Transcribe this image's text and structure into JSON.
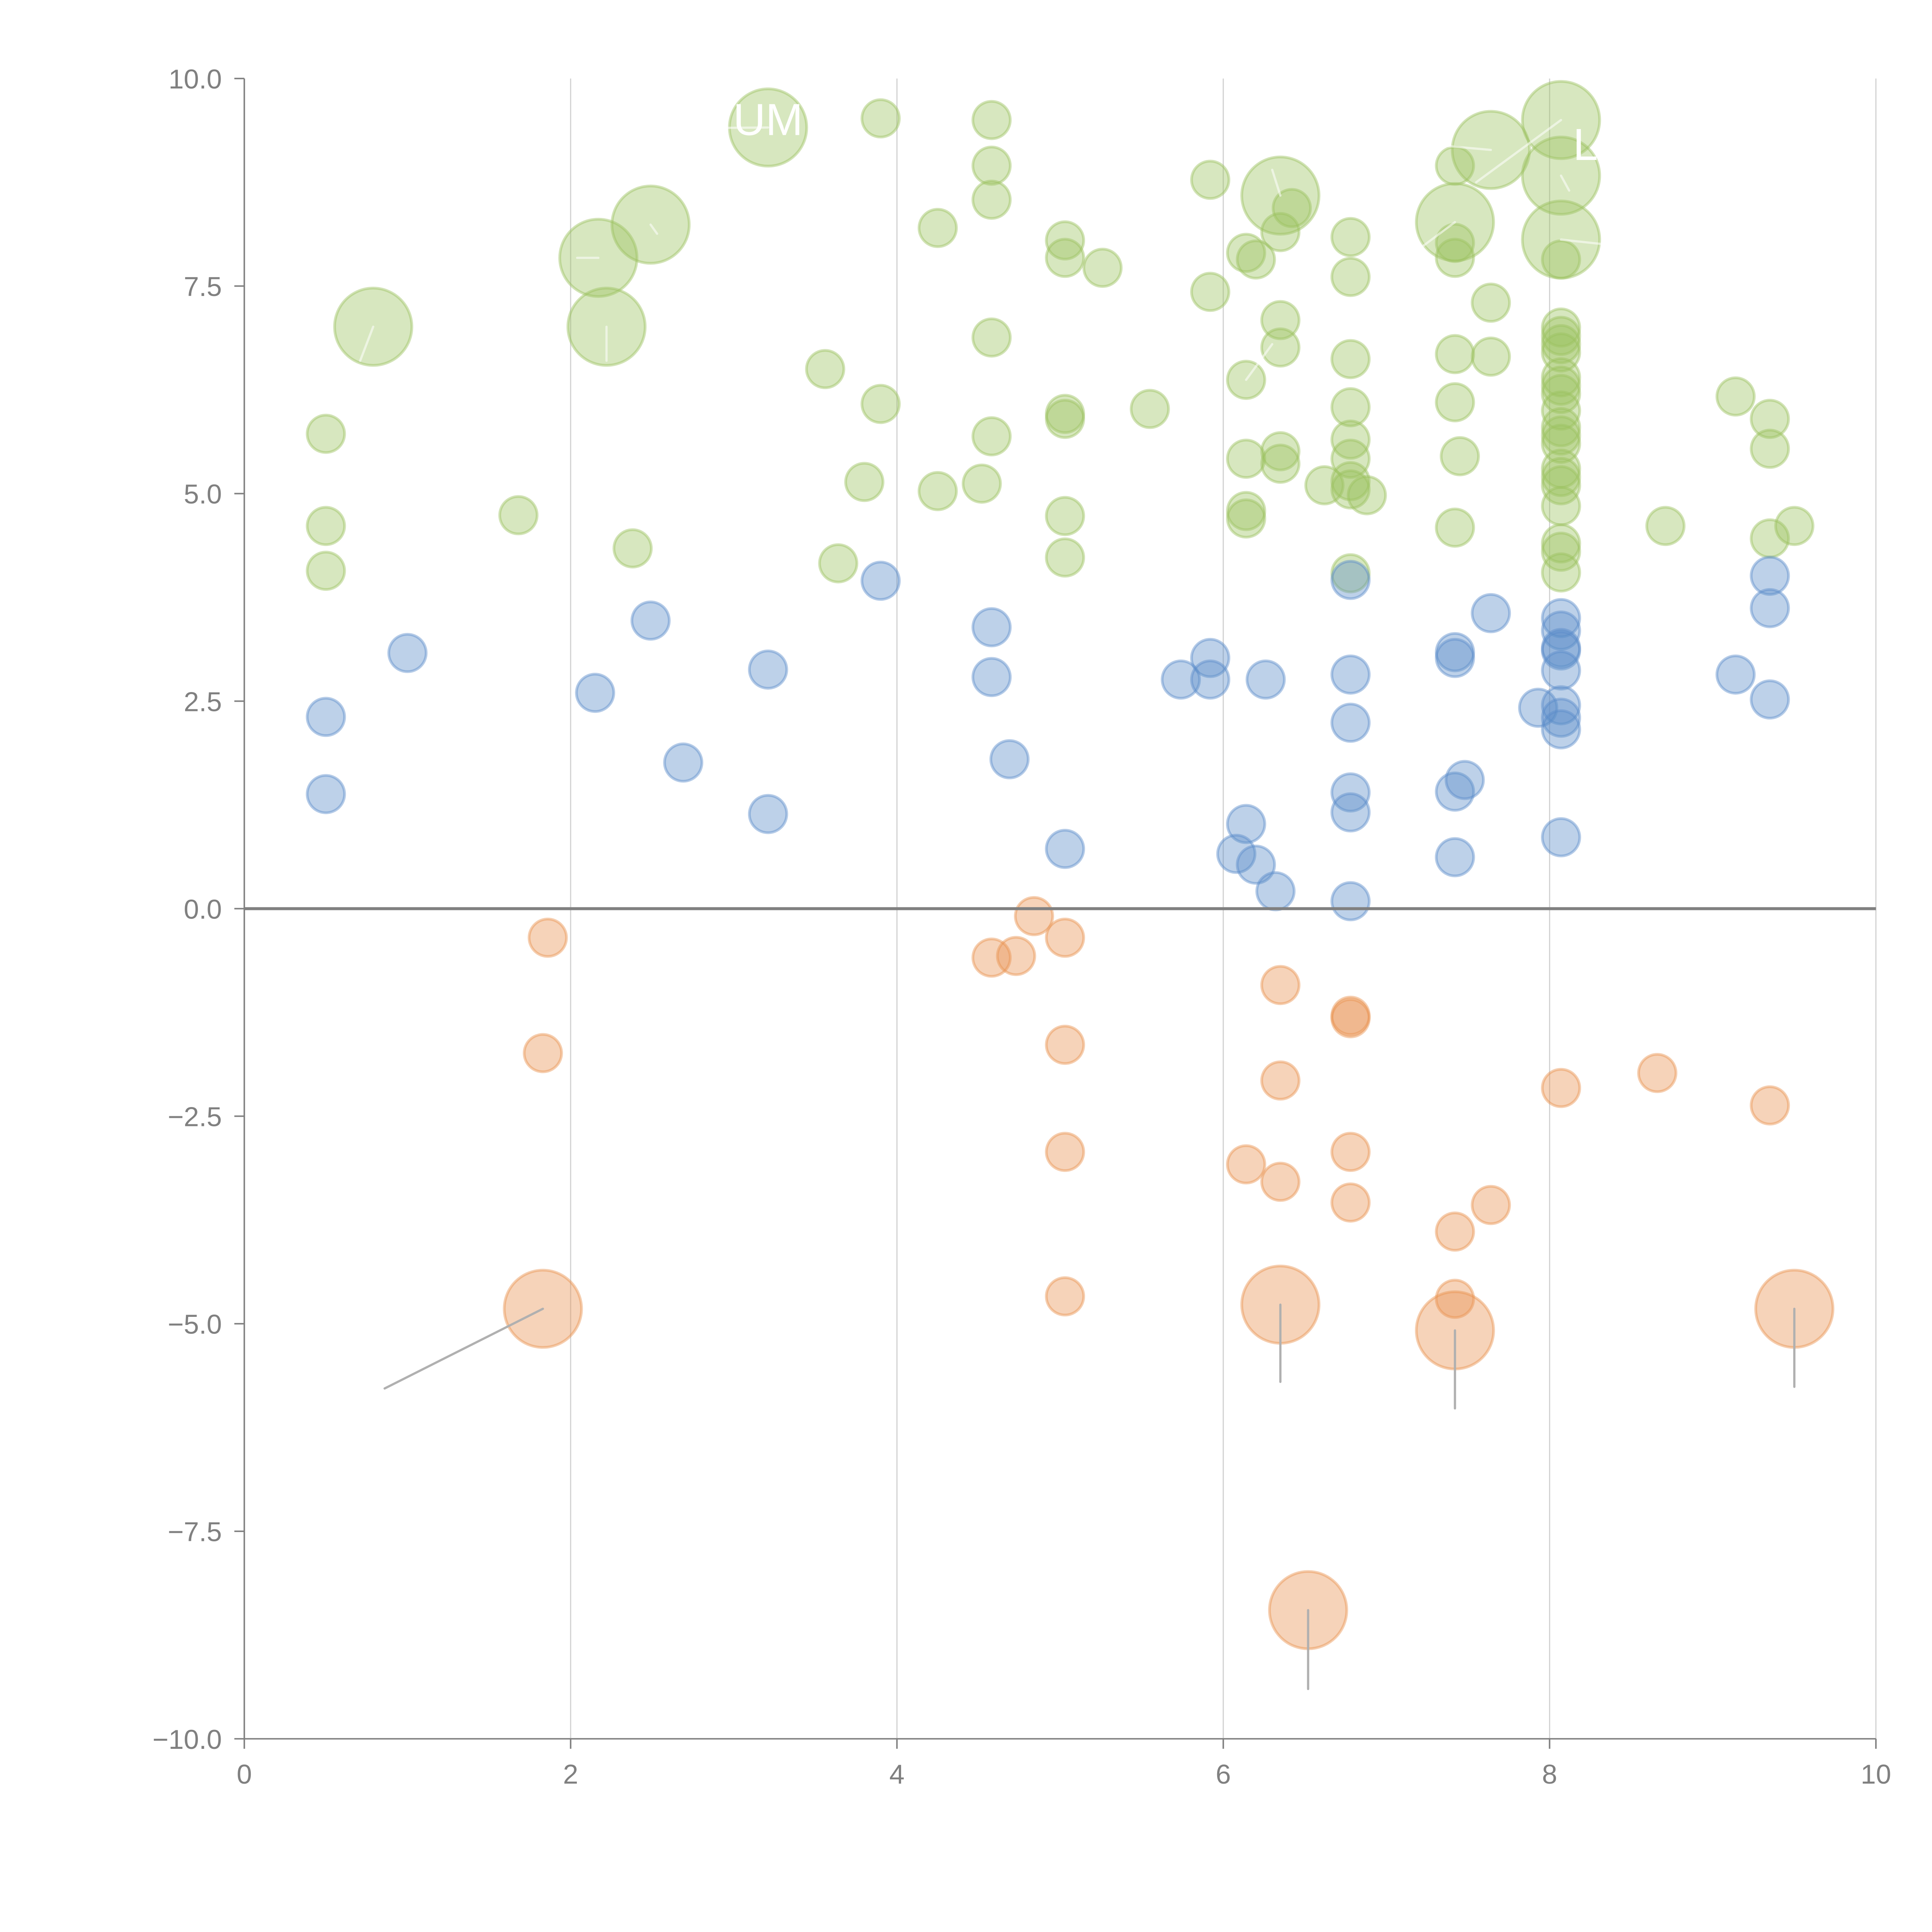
{
  "chart_data": {
    "type": "scatter",
    "subtype": "bubble",
    "title": "",
    "xlabel": "",
    "ylabel": "",
    "xlim": [
      0,
      10
    ],
    "ylim": [
      -10,
      10
    ],
    "x_ticks": [
      "0",
      "2",
      "4",
      "6",
      "8",
      "10"
    ],
    "x_tick_values": [
      0,
      2,
      4,
      6,
      8,
      10
    ],
    "y_ticks": [
      "10.0",
      "7.5",
      "5.0",
      "2.5",
      "0.0",
      "−2.5",
      "−5.0",
      "−7.5",
      "−10.0"
    ],
    "y_tick_values": [
      10,
      7.5,
      5,
      2.5,
      0,
      -2.5,
      -5,
      -7.5,
      -10
    ],
    "vertical_grid": true,
    "zero_line": true,
    "legend": "none",
    "colors": {
      "green": "#9bc25f",
      "blue": "#5b8bc9",
      "orange": "#e8924f",
      "leader": "#b0b0b0",
      "axis": "#808080"
    },
    "series": [
      {
        "name": "green",
        "color_key": "green",
        "points": [
          [
            0.5,
            5.72,
            1
          ],
          [
            0.5,
            4.61,
            1
          ],
          [
            0.5,
            4.07,
            1
          ],
          [
            1.68,
            4.74,
            1
          ],
          [
            2.38,
            4.34,
            1
          ],
          [
            3.56,
            6.5,
            1
          ],
          [
            3.8,
            5.14,
            1
          ],
          [
            3.64,
            4.16,
            1
          ],
          [
            3.9,
            9.52,
            1
          ],
          [
            3.9,
            6.08,
            1
          ],
          [
            4.25,
            8.2,
            1
          ],
          [
            4.25,
            5.03,
            1
          ],
          [
            4.52,
            5.12,
            1
          ],
          [
            4.58,
            9.5,
            1
          ],
          [
            4.58,
            8.95,
            1
          ],
          [
            4.58,
            8.54,
            1
          ],
          [
            4.58,
            6.88,
            1
          ],
          [
            4.58,
            5.69,
            1
          ],
          [
            5.03,
            8.05,
            1
          ],
          [
            5.03,
            7.84,
            1
          ],
          [
            5.26,
            7.72,
            1
          ],
          [
            5.03,
            5.96,
            1
          ],
          [
            5.03,
            5.9,
            1
          ],
          [
            5.03,
            4.73,
            1
          ],
          [
            5.03,
            4.23,
            1
          ],
          [
            5.55,
            6.02,
            1
          ],
          [
            5.92,
            8.78,
            1
          ],
          [
            5.92,
            7.43,
            1
          ],
          [
            6.14,
            7.9,
            1
          ],
          [
            6.2,
            7.82,
            1
          ],
          [
            6.35,
            8.15,
            1
          ],
          [
            6.42,
            8.44,
            1
          ],
          [
            6.14,
            6.37,
            1
          ],
          [
            6.35,
            7.09,
            1
          ],
          [
            6.35,
            6.76,
            1
          ],
          [
            6.14,
            5.42,
            1
          ],
          [
            6.35,
            5.51,
            1
          ],
          [
            6.35,
            5.36,
            1
          ],
          [
            6.14,
            4.79,
            1
          ],
          [
            6.14,
            4.7,
            1
          ],
          [
            6.62,
            5.1,
            1
          ],
          [
            6.78,
            8.09,
            1
          ],
          [
            6.78,
            7.61,
            1
          ],
          [
            6.78,
            6.62,
            1
          ],
          [
            6.78,
            6.04,
            1
          ],
          [
            6.78,
            5.65,
            1
          ],
          [
            6.78,
            5.42,
            1
          ],
          [
            6.78,
            5.15,
            1
          ],
          [
            6.78,
            5.05,
            1
          ],
          [
            6.88,
            4.98,
            1
          ],
          [
            6.78,
            4.04,
            1
          ],
          [
            7.42,
            8.95,
            1
          ],
          [
            7.42,
            8.02,
            1
          ],
          [
            7.42,
            7.84,
            1
          ],
          [
            7.42,
            6.68,
            1
          ],
          [
            7.42,
            6.1,
            1
          ],
          [
            7.45,
            5.45,
            1
          ],
          [
            7.42,
            4.59,
            1
          ],
          [
            7.64,
            7.3,
            1
          ],
          [
            7.64,
            6.65,
            1
          ],
          [
            8.07,
            7.82,
            1
          ],
          [
            8.07,
            7.0,
            1
          ],
          [
            8.07,
            6.9,
            1
          ],
          [
            8.07,
            6.8,
            1
          ],
          [
            8.07,
            6.7,
            1
          ],
          [
            8.07,
            6.4,
            1
          ],
          [
            8.07,
            6.3,
            1
          ],
          [
            8.07,
            6.2,
            1
          ],
          [
            8.07,
            6.0,
            1
          ],
          [
            8.07,
            5.8,
            1
          ],
          [
            8.07,
            5.7,
            1
          ],
          [
            8.07,
            5.6,
            1
          ],
          [
            8.07,
            5.3,
            1
          ],
          [
            8.07,
            5.2,
            1
          ],
          [
            8.07,
            5.1,
            1
          ],
          [
            8.07,
            4.85,
            1
          ],
          [
            8.07,
            4.4,
            1
          ],
          [
            8.07,
            4.3,
            1
          ],
          [
            8.07,
            4.05,
            1
          ],
          [
            8.71,
            4.61,
            1
          ],
          [
            9.14,
            6.17,
            1
          ],
          [
            9.35,
            5.9,
            1
          ],
          [
            9.35,
            5.54,
            1
          ],
          [
            9.35,
            4.46,
            1
          ],
          [
            9.5,
            4.61,
            1
          ],
          [
            0.79,
            7.01,
            2.1
          ],
          [
            2.17,
            7.84,
            2.1
          ],
          [
            2.22,
            7.01,
            2.1
          ],
          [
            2.49,
            8.24,
            2.1
          ],
          [
            3.21,
            9.41,
            2.1
          ],
          [
            6.35,
            8.59,
            2.1
          ],
          [
            7.42,
            8.27,
            2.1
          ],
          [
            7.64,
            9.14,
            2.1
          ],
          [
            8.07,
            9.5,
            2.1
          ],
          [
            8.07,
            8.83,
            2.1
          ],
          [
            8.07,
            8.06,
            2.1
          ]
        ]
      },
      {
        "name": "blue",
        "color_key": "blue",
        "points": [
          [
            0.5,
            2.31,
            1
          ],
          [
            0.5,
            1.38,
            1
          ],
          [
            1.0,
            3.08,
            1
          ],
          [
            2.15,
            2.6,
            1
          ],
          [
            2.49,
            3.47,
            1
          ],
          [
            2.69,
            1.76,
            1
          ],
          [
            3.21,
            2.88,
            1
          ],
          [
            3.21,
            1.14,
            1
          ],
          [
            3.9,
            3.95,
            1
          ],
          [
            4.58,
            3.39,
            1
          ],
          [
            4.58,
            2.79,
            1
          ],
          [
            4.69,
            1.8,
            1
          ],
          [
            5.03,
            0.72,
            1
          ],
          [
            5.74,
            2.76,
            1
          ],
          [
            5.92,
            3.02,
            1
          ],
          [
            5.92,
            2.76,
            1
          ],
          [
            6.26,
            2.76,
            1
          ],
          [
            6.14,
            1.02,
            1
          ],
          [
            6.08,
            0.66,
            1
          ],
          [
            6.2,
            0.53,
            1
          ],
          [
            6.32,
            0.21,
            1
          ],
          [
            6.78,
            3.96,
            1
          ],
          [
            6.78,
            2.82,
            1
          ],
          [
            6.78,
            2.24,
            1
          ],
          [
            6.78,
            1.4,
            1
          ],
          [
            6.78,
            1.16,
            1
          ],
          [
            6.78,
            0.09,
            1
          ],
          [
            7.42,
            3.09,
            1
          ],
          [
            7.42,
            3.02,
            1
          ],
          [
            7.42,
            1.41,
            1
          ],
          [
            7.48,
            1.55,
            1
          ],
          [
            7.42,
            0.62,
            1
          ],
          [
            7.64,
            3.56,
            1
          ],
          [
            7.93,
            2.42,
            1
          ],
          [
            8.07,
            3.5,
            1
          ],
          [
            8.07,
            3.35,
            1
          ],
          [
            8.07,
            3.14,
            1
          ],
          [
            8.07,
            3.11,
            1
          ],
          [
            8.07,
            2.87,
            1
          ],
          [
            8.07,
            2.45,
            1
          ],
          [
            8.07,
            2.3,
            1
          ],
          [
            8.07,
            2.16,
            1
          ],
          [
            8.07,
            0.86,
            1
          ],
          [
            9.14,
            2.82,
            1
          ],
          [
            9.35,
            4.01,
            1
          ],
          [
            9.35,
            3.62,
            1
          ],
          [
            9.35,
            2.52,
            1
          ]
        ]
      },
      {
        "name": "orange",
        "color_key": "orange",
        "points": [
          [
            1.86,
            -0.35,
            1
          ],
          [
            1.83,
            -1.74,
            1
          ],
          [
            4.84,
            -0.09,
            1
          ],
          [
            4.58,
            -0.59,
            1
          ],
          [
            4.73,
            -0.57,
            1
          ],
          [
            5.03,
            -0.35,
            1
          ],
          [
            5.03,
            -1.64,
            1
          ],
          [
            5.03,
            -2.93,
            1
          ],
          [
            5.03,
            -4.67,
            1
          ],
          [
            6.35,
            -0.92,
            1
          ],
          [
            6.35,
            -2.07,
            1
          ],
          [
            6.35,
            -3.29,
            1
          ],
          [
            6.14,
            -3.08,
            1
          ],
          [
            6.78,
            -1.29,
            1
          ],
          [
            6.78,
            -1.32,
            1
          ],
          [
            6.78,
            -2.93,
            1
          ],
          [
            6.78,
            -3.54,
            1
          ],
          [
            7.42,
            -3.89,
            1
          ],
          [
            7.42,
            -4.7,
            1
          ],
          [
            7.64,
            -3.57,
            1
          ],
          [
            8.07,
            -2.16,
            1
          ],
          [
            8.66,
            -1.98,
            1
          ],
          [
            9.35,
            -2.37,
            1
          ],
          [
            1.83,
            -4.82,
            2.1
          ],
          [
            6.35,
            -4.77,
            2.1
          ],
          [
            7.42,
            -5.08,
            2.1
          ],
          [
            9.5,
            -4.82,
            2.1
          ],
          [
            6.52,
            -8.45,
            2.1
          ]
        ]
      }
    ],
    "leaders": [
      {
        "from": [
          1.83,
          -4.82
        ],
        "to": [
          0.86,
          -5.78
        ],
        "style": "grey"
      },
      {
        "from": [
          6.35,
          -4.77
        ],
        "to": [
          6.35,
          -5.7
        ],
        "style": "grey"
      },
      {
        "from": [
          7.42,
          -5.08
        ],
        "to": [
          7.42,
          -6.02
        ],
        "style": "grey"
      },
      {
        "from": [
          9.5,
          -4.82
        ],
        "to": [
          9.5,
          -5.76
        ],
        "style": "grey"
      },
      {
        "from": [
          6.52,
          -8.45
        ],
        "to": [
          6.52,
          -9.4
        ],
        "style": "grey"
      },
      {
        "from": [
          0.79,
          7.01
        ],
        "to": [
          0.71,
          6.6
        ],
        "style": "light"
      },
      {
        "from": [
          2.22,
          7.01
        ],
        "to": [
          2.22,
          6.6
        ],
        "style": "light"
      },
      {
        "from": [
          2.17,
          7.84
        ],
        "to": [
          2.04,
          7.84
        ],
        "style": "light"
      },
      {
        "from": [
          2.49,
          8.24
        ],
        "to": [
          2.53,
          8.13
        ],
        "style": "light"
      },
      {
        "from": [
          3.21,
          9.41
        ],
        "to": [
          2.6,
          9.4
        ],
        "style": "light"
      },
      {
        "from": [
          6.35,
          8.59
        ],
        "to": [
          6.3,
          8.9
        ],
        "style": "light"
      },
      {
        "from": [
          7.42,
          8.27
        ],
        "to": [
          7.1,
          7.8
        ],
        "style": "light"
      },
      {
        "from": [
          7.64,
          9.14
        ],
        "to": [
          7.3,
          9.2
        ],
        "style": "light"
      },
      {
        "from": [
          8.07,
          9.5
        ],
        "to": [
          7.55,
          8.75
        ],
        "style": "light"
      },
      {
        "from": [
          8.07,
          8.83
        ],
        "to": [
          8.12,
          8.65
        ],
        "style": "light"
      },
      {
        "from": [
          8.07,
          8.06
        ],
        "to": [
          8.35,
          8.0
        ],
        "style": "light"
      },
      {
        "from": [
          6.14,
          6.37
        ],
        "to": [
          6.3,
          6.8
        ],
        "style": "light"
      }
    ],
    "annotations": [
      {
        "text": "UM",
        "x": 3.21,
        "y": 9.5,
        "note": "white label partially visible over bubble"
      },
      {
        "text": "L",
        "x": 8.22,
        "y": 9.2,
        "note": "white label partially visible over bubble"
      }
    ]
  }
}
